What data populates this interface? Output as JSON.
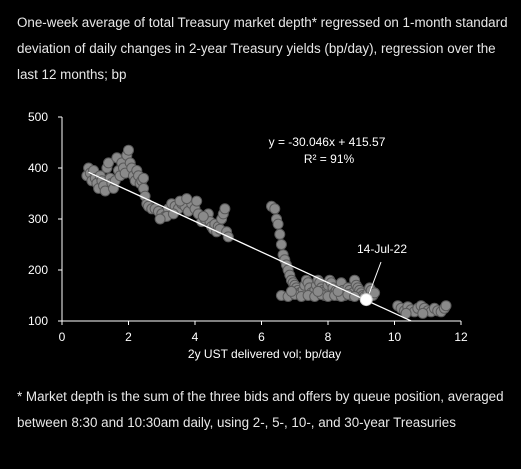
{
  "title": "One-week average of total Treasury market depth* regressed on 1-month standard deviation of daily changes in 2-year Treasury yields (bp/day), regression over the last 12 months; bp",
  "footnote": "* Market depth is the sum of the three bids and offers by queue position, averaged between 8:30 and 10:30am daily, using 2-, 5-, 10-, and 30-year Treasuries",
  "colors": {
    "background": "#000000",
    "point_fill": "#8a8a8a",
    "point_stroke": "#5a5a5a",
    "highlight": "#ffffff",
    "line": "#ffffff",
    "text": "#ffffff"
  },
  "chart_data": {
    "type": "scatter",
    "xlabel": "2y UST delivered vol; bp/day",
    "ylabel": "",
    "xlim": [
      0,
      12
    ],
    "ylim": [
      100,
      500
    ],
    "xticks": [
      "0",
      "2",
      "4",
      "6",
      "8",
      "10",
      "12"
    ],
    "yticks": [
      "100",
      "200",
      "300",
      "400",
      "500"
    ],
    "grid": false,
    "regression": {
      "label": "y = -30.046x + 415.57",
      "r2_label": "R² = 91%",
      "slope": -30.046,
      "intercept": 415.57,
      "x_range": [
        0.8,
        10.5
      ]
    },
    "highlight": {
      "label": "14-Jul-22",
      "x": 9.15,
      "y": 142
    },
    "points": [
      [
        0.75,
        385
      ],
      [
        0.8,
        400
      ],
      [
        0.85,
        390
      ],
      [
        0.9,
        375
      ],
      [
        0.95,
        395
      ],
      [
        1.0,
        380
      ],
      [
        1.05,
        370
      ],
      [
        1.1,
        360
      ],
      [
        1.15,
        385
      ],
      [
        1.2,
        375
      ],
      [
        1.25,
        365
      ],
      [
        1.3,
        355
      ],
      [
        1.35,
        400
      ],
      [
        1.4,
        410
      ],
      [
        1.45,
        380
      ],
      [
        1.5,
        370
      ],
      [
        1.55,
        360
      ],
      [
        1.6,
        375
      ],
      [
        1.65,
        420
      ],
      [
        1.7,
        395
      ],
      [
        1.75,
        385
      ],
      [
        1.8,
        410
      ],
      [
        1.85,
        400
      ],
      [
        1.9,
        390
      ],
      [
        1.95,
        425
      ],
      [
        2.0,
        435
      ],
      [
        2.05,
        410
      ],
      [
        2.1,
        400
      ],
      [
        2.15,
        385
      ],
      [
        2.2,
        375
      ],
      [
        2.25,
        395
      ],
      [
        2.3,
        385
      ],
      [
        2.35,
        370
      ],
      [
        2.4,
        375
      ],
      [
        2.45,
        360
      ],
      [
        2.5,
        345
      ],
      [
        2.55,
        330
      ],
      [
        2.45,
        380
      ],
      [
        2.6,
        325
      ],
      [
        2.7,
        320
      ],
      [
        2.8,
        320
      ],
      [
        2.9,
        315
      ],
      [
        3.0,
        310
      ],
      [
        3.1,
        305
      ],
      [
        3.2,
        320
      ],
      [
        3.3,
        330
      ],
      [
        3.4,
        325
      ],
      [
        3.5,
        320
      ],
      [
        3.6,
        330
      ],
      [
        3.7,
        325
      ],
      [
        3.8,
        315
      ],
      [
        3.9,
        330
      ],
      [
        4.0,
        320
      ],
      [
        4.1,
        310
      ],
      [
        4.2,
        295
      ],
      [
        4.3,
        300
      ],
      [
        4.4,
        310
      ],
      [
        4.45,
        295
      ],
      [
        4.5,
        285
      ],
      [
        4.55,
        280
      ],
      [
        4.6,
        290
      ],
      [
        4.65,
        275
      ],
      [
        4.7,
        285
      ],
      [
        4.75,
        280
      ],
      [
        4.8,
        300
      ],
      [
        4.85,
        310
      ],
      [
        4.9,
        320
      ],
      [
        4.95,
        275
      ],
      [
        5.0,
        265
      ],
      [
        3.55,
        335
      ],
      [
        3.75,
        340
      ],
      [
        4.05,
        335
      ],
      [
        3.15,
        305
      ],
      [
        2.95,
        300
      ],
      [
        3.35,
        310
      ],
      [
        4.25,
        305
      ],
      [
        6.3,
        325
      ],
      [
        6.4,
        320
      ],
      [
        6.45,
        300
      ],
      [
        6.5,
        290
      ],
      [
        6.55,
        270
      ],
      [
        6.6,
        250
      ],
      [
        6.65,
        230
      ],
      [
        6.7,
        220
      ],
      [
        6.75,
        210
      ],
      [
        6.8,
        200
      ],
      [
        6.85,
        190
      ],
      [
        6.9,
        180
      ],
      [
        6.95,
        175
      ],
      [
        7.0,
        170
      ],
      [
        7.05,
        165
      ],
      [
        7.1,
        160
      ],
      [
        7.15,
        155
      ],
      [
        7.2,
        150
      ],
      [
        7.25,
        160
      ],
      [
        7.3,
        170
      ],
      [
        7.35,
        180
      ],
      [
        7.4,
        175
      ],
      [
        7.45,
        165
      ],
      [
        7.5,
        155
      ],
      [
        7.55,
        150
      ],
      [
        7.6,
        160
      ],
      [
        7.65,
        170
      ],
      [
        7.7,
        180
      ],
      [
        7.75,
        175
      ],
      [
        7.8,
        165
      ],
      [
        7.85,
        160
      ],
      [
        7.9,
        150
      ],
      [
        7.95,
        160
      ],
      [
        8.0,
        170
      ],
      [
        8.05,
        180
      ],
      [
        8.1,
        175
      ],
      [
        8.15,
        165
      ],
      [
        8.2,
        155
      ],
      [
        8.25,
        160
      ],
      [
        8.3,
        150
      ],
      [
        8.35,
        165
      ],
      [
        8.4,
        175
      ],
      [
        8.45,
        160
      ],
      [
        8.5,
        150
      ],
      [
        8.55,
        155
      ],
      [
        8.6,
        165
      ],
      [
        8.65,
        160
      ],
      [
        8.7,
        150
      ],
      [
        8.75,
        155
      ],
      [
        8.8,
        180
      ],
      [
        8.85,
        170
      ],
      [
        8.9,
        165
      ],
      [
        8.95,
        160
      ],
      [
        9.0,
        155
      ],
      [
        9.05,
        150
      ],
      [
        9.1,
        148
      ],
      [
        9.2,
        155
      ],
      [
        9.25,
        165
      ],
      [
        9.3,
        160
      ],
      [
        9.35,
        150
      ],
      [
        9.4,
        155
      ],
      [
        6.6,
        150
      ],
      [
        6.8,
        148
      ],
      [
        7.0,
        152
      ],
      [
        7.2,
        148
      ],
      [
        7.4,
        150
      ],
      [
        7.6,
        148
      ],
      [
        7.8,
        152
      ],
      [
        8.0,
        148
      ],
      [
        8.2,
        150
      ],
      [
        8.4,
        148
      ],
      [
        8.6,
        152
      ],
      [
        8.8,
        148
      ],
      [
        6.9,
        158
      ],
      [
        7.7,
        158
      ],
      [
        8.3,
        158
      ],
      [
        10.1,
        130
      ],
      [
        10.2,
        125
      ],
      [
        10.3,
        120
      ],
      [
        10.4,
        128
      ],
      [
        10.5,
        122
      ],
      [
        10.6,
        118
      ],
      [
        10.7,
        125
      ],
      [
        10.8,
        130
      ],
      [
        10.9,
        125
      ],
      [
        11.0,
        120
      ],
      [
        11.1,
        118
      ],
      [
        11.2,
        125
      ],
      [
        11.3,
        120
      ],
      [
        11.4,
        118
      ],
      [
        11.5,
        125
      ],
      [
        11.55,
        130
      ],
      [
        10.35,
        115
      ],
      [
        10.85,
        115
      ]
    ]
  }
}
